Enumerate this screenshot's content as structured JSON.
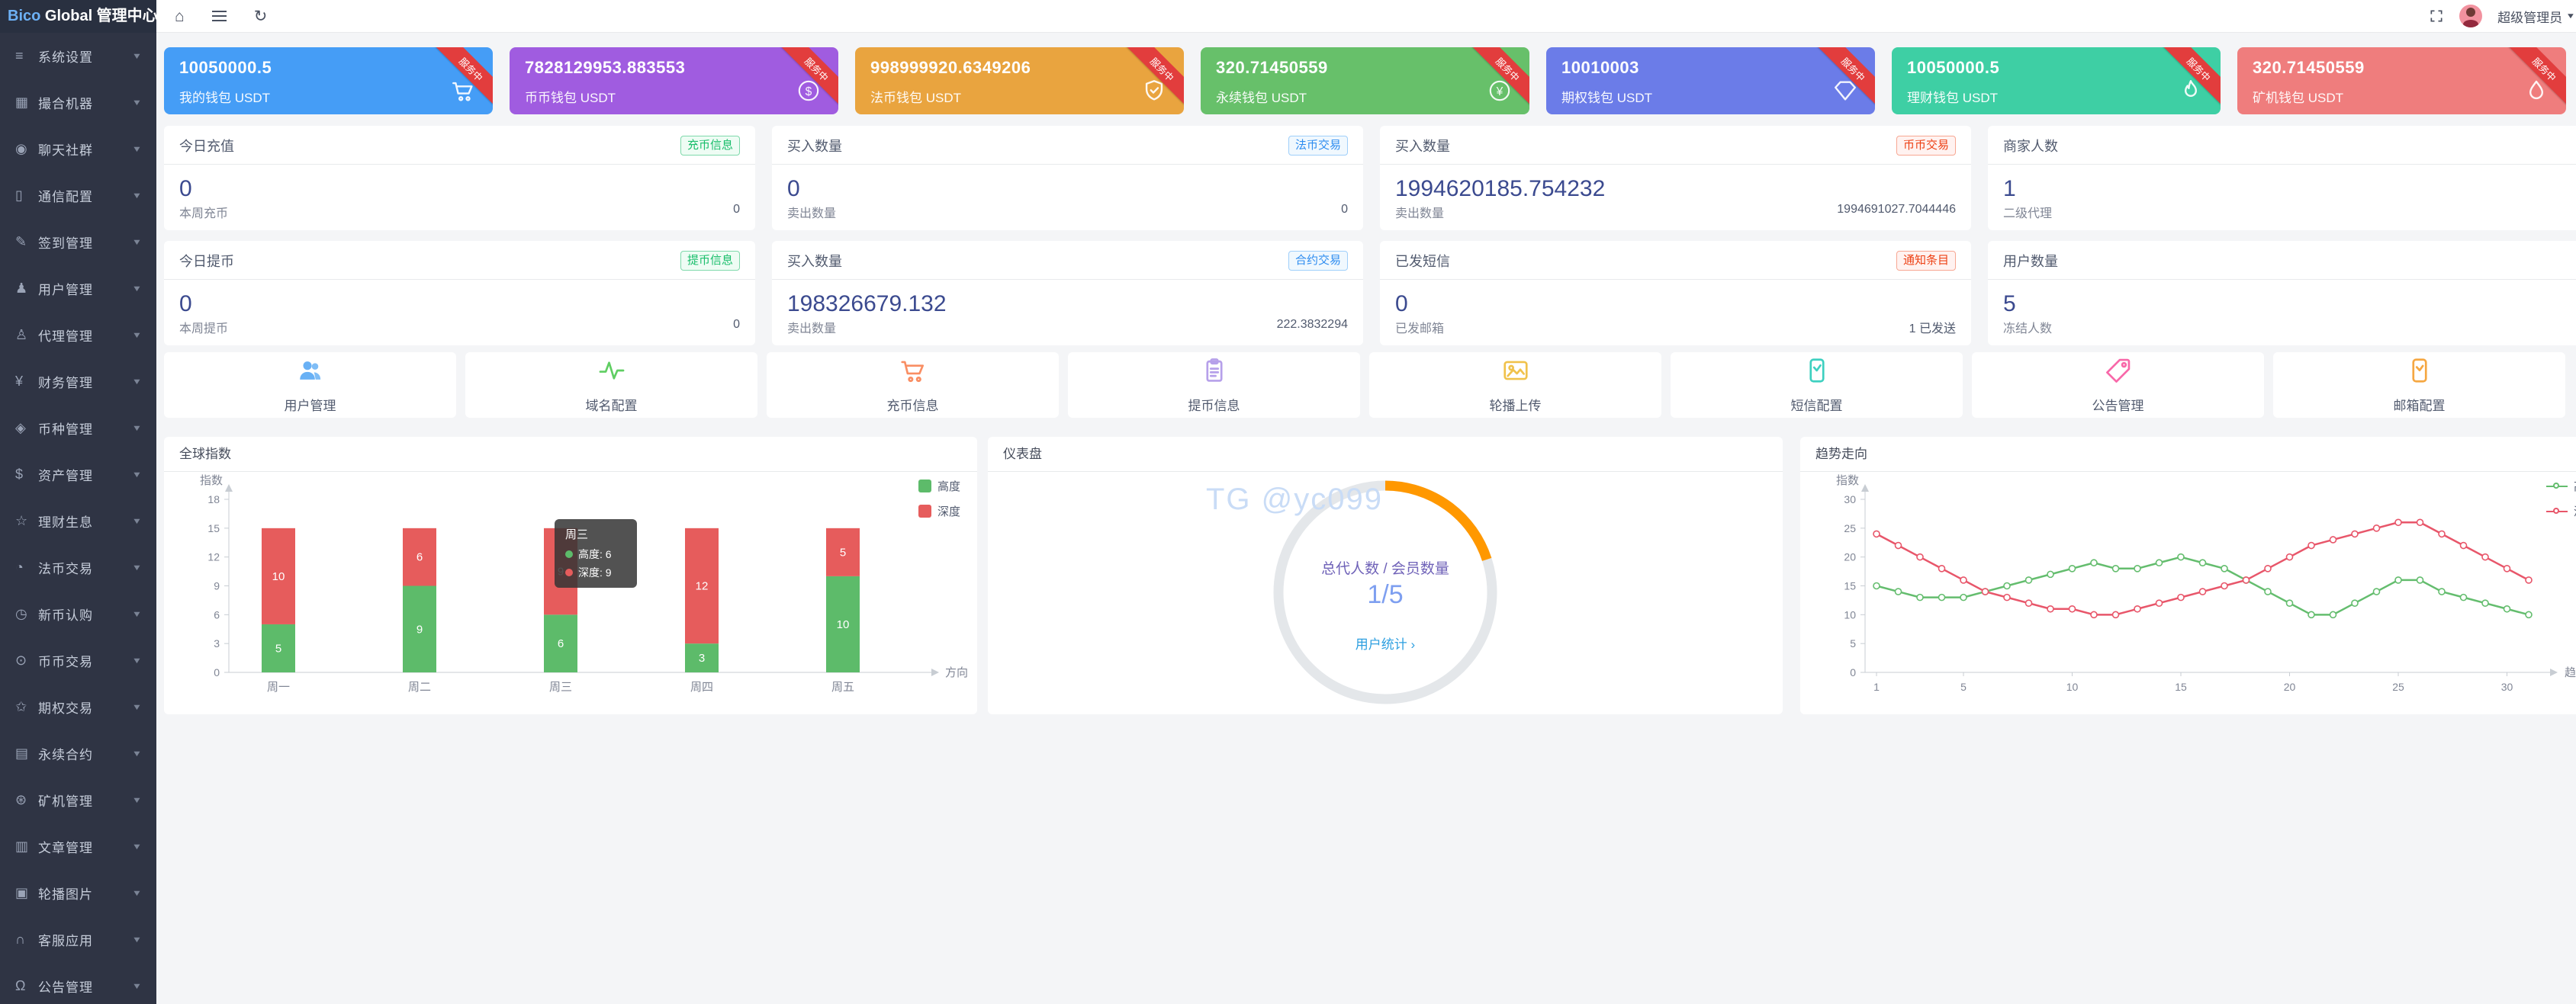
{
  "app": {
    "logo_primary": "Bico",
    "logo_secondary": " Global 管理中心",
    "admin_name": "超级管理员"
  },
  "topbar": {
    "icons": [
      {
        "name": "home-icon",
        "glyph": "⌂"
      },
      {
        "name": "menu-fold-icon",
        "glyph": ""
      },
      {
        "name": "refresh-icon",
        "glyph": "↻"
      }
    ]
  },
  "sidebar": {
    "items": [
      {
        "icon": "sliders-icon",
        "glyph": "≡",
        "label": "系统设置"
      },
      {
        "icon": "modules-icon",
        "glyph": "▦",
        "label": "撮合机器"
      },
      {
        "icon": "chat-icon",
        "glyph": "◉",
        "label": "聊天社群"
      },
      {
        "icon": "phone-icon",
        "glyph": "▯",
        "label": "通信配置"
      },
      {
        "icon": "signin-icon",
        "glyph": "✎",
        "label": "签到管理"
      },
      {
        "icon": "user-icon",
        "glyph": "♟",
        "label": "用户管理"
      },
      {
        "icon": "agent-icon",
        "glyph": "♙",
        "label": "代理管理"
      },
      {
        "icon": "finance-icon",
        "glyph": "¥",
        "label": "财务管理"
      },
      {
        "icon": "coin-type-icon",
        "glyph": "◈",
        "label": "币种管理"
      },
      {
        "icon": "asset-icon",
        "glyph": "$",
        "label": "资产管理"
      },
      {
        "icon": "wealth-icon",
        "glyph": "☆",
        "label": "理财生息"
      },
      {
        "icon": "fiat-trade-icon",
        "glyph": "◔",
        "label": "法币交易"
      },
      {
        "icon": "new-coin-icon",
        "glyph": "◷",
        "label": "新币认购"
      },
      {
        "icon": "coin-trade-icon",
        "glyph": "⊙",
        "label": "币币交易"
      },
      {
        "icon": "option-trade-icon",
        "glyph": "✩",
        "label": "期权交易"
      },
      {
        "icon": "contract-icon",
        "glyph": "▤",
        "label": "永续合约"
      },
      {
        "icon": "miner-icon",
        "glyph": "⊛",
        "label": "矿机管理"
      },
      {
        "icon": "article-icon",
        "glyph": "▥",
        "label": "文章管理"
      },
      {
        "icon": "carousel-icon",
        "glyph": "▣",
        "label": "轮播图片"
      },
      {
        "icon": "service-icon",
        "glyph": "∩",
        "label": "客服应用"
      },
      {
        "icon": "announce-icon",
        "glyph": "Ω",
        "label": "公告管理"
      }
    ]
  },
  "wallet_cards": [
    {
      "value": "10050000.5",
      "label": "我的钱包 USDT",
      "color": "#459df6",
      "icon": "cart-icon",
      "ribbon": "服务中"
    },
    {
      "value": "7828129953.883553",
      "label": "币币钱包 USDT",
      "color": "#a05ce0",
      "icon": "dollar-circle-icon",
      "ribbon": "服务中"
    },
    {
      "value": "998999920.6349206",
      "label": "法币钱包 USDT",
      "color": "#e9a43f",
      "icon": "shield-check-icon",
      "ribbon": "服务中"
    },
    {
      "value": "320.71450559",
      "label": "永续钱包 USDT",
      "color": "#67c06a",
      "icon": "yen-circle-icon",
      "ribbon": "服务中"
    },
    {
      "value": "10010003",
      "label": "期权钱包 USDT",
      "color": "#6b7ce8",
      "icon": "diamond-icon",
      "ribbon": "服务中"
    },
    {
      "value": "10050000.5",
      "label": "理财钱包 USDT",
      "color": "#3ecfa4",
      "icon": "flame-icon",
      "ribbon": "服务中"
    },
    {
      "value": "320.71450559",
      "label": "矿机钱包 USDT",
      "color": "#ef7d7d",
      "icon": "drop-icon",
      "ribbon": "服务中"
    }
  ],
  "stat_cards": [
    {
      "label": "今日充值",
      "badge": {
        "text": "充币信息",
        "type": "green"
      },
      "value": "0",
      "footer_label": "本周充币",
      "footer_value": "0"
    },
    {
      "label": "买入数量",
      "badge": {
        "text": "法币交易",
        "type": "blue"
      },
      "value": "0",
      "footer_label": "卖出数量",
      "footer_value": "0"
    },
    {
      "label": "买入数量",
      "badge": {
        "text": "币币交易",
        "type": "red"
      },
      "value": "1994620185.754232",
      "footer_label": "卖出数量",
      "footer_value": "1994691027.7044446"
    },
    {
      "label": "商家人数",
      "badge": null,
      "value": "1",
      "footer_label": "二级代理",
      "footer_value": ""
    },
    {
      "label": "今日提币",
      "badge": {
        "text": "提币信息",
        "type": "green"
      },
      "value": "0",
      "footer_label": "本周提币",
      "footer_value": "0"
    },
    {
      "label": "买入数量",
      "badge": {
        "text": "合约交易",
        "type": "blue"
      },
      "value": "198326679.132",
      "footer_label": "卖出数量",
      "footer_value": "222.3832294"
    },
    {
      "label": "已发短信",
      "badge": {
        "text": "通知条目",
        "type": "red"
      },
      "value": "0",
      "footer_label": "已发邮箱",
      "footer_value": "1 已发送"
    },
    {
      "label": "用户数量",
      "badge": null,
      "value": "5",
      "footer_label": "冻结人数",
      "footer_value": ""
    }
  ],
  "shortcuts": [
    {
      "icon": "users-icon",
      "label": "用户管理",
      "color": "#69b1f5"
    },
    {
      "icon": "pulse-icon",
      "label": "域名配置",
      "color": "#5fce62"
    },
    {
      "icon": "cart-outline-icon",
      "label": "充币信息",
      "color": "#f98e63"
    },
    {
      "icon": "clipboard-icon",
      "label": "提币信息",
      "color": "#b6a0ea"
    },
    {
      "icon": "image-icon",
      "label": "轮播上传",
      "color": "#f0c24b"
    },
    {
      "icon": "sms-icon",
      "label": "短信配置",
      "color": "#3ed0c0"
    },
    {
      "icon": "tag-icon",
      "label": "公告管理",
      "color": "#f868a9"
    },
    {
      "icon": "mail-icon",
      "label": "邮箱配置",
      "color": "#f5a742"
    }
  ],
  "chart_data": [
    {
      "type": "bar",
      "title": "全球指数",
      "categories": [
        "周一",
        "周二",
        "周三",
        "周四",
        "周五"
      ],
      "series": [
        {
          "name": "高度",
          "color": "#5dbb6a",
          "values": [
            5,
            9,
            6,
            3,
            10
          ]
        },
        {
          "name": "深度",
          "color": "#e65c5c",
          "values": [
            10,
            6,
            9,
            12,
            5
          ]
        }
      ],
      "stacked": true,
      "xlabel": "方向",
      "ylabel": "指数",
      "ylim": [
        0,
        18
      ],
      "ytick_step": 3,
      "grid": false,
      "legend_position": "top-right",
      "tooltip": {
        "category": "周三",
        "rows": [
          {
            "name": "高度",
            "value": 6
          },
          {
            "name": "深度",
            "value": 9
          }
        ]
      }
    },
    {
      "type": "gauge",
      "title": "仪表盘",
      "label": "总代人数 / 会员数量",
      "value_text": "1/5",
      "ratio": 0.2,
      "link_text": "用户统计 ›",
      "watermark": "TG @yc099",
      "arc_color": "#ff9800",
      "ring_color": "#e4e7ea"
    },
    {
      "type": "line",
      "title": "趋势走向",
      "x": [
        1,
        2,
        3,
        4,
        5,
        6,
        7,
        8,
        9,
        10,
        11,
        12,
        13,
        14,
        15,
        16,
        17,
        18,
        19,
        20,
        21,
        22,
        23,
        24,
        25,
        26,
        27,
        28,
        29,
        30,
        31
      ],
      "xticks": [
        1,
        5,
        10,
        15,
        20,
        25,
        30
      ],
      "series": [
        {
          "name": "高度",
          "color": "#64bd6e",
          "values": [
            15,
            14,
            13,
            13,
            13,
            14,
            15,
            16,
            17,
            18,
            19,
            18,
            18,
            19,
            20,
            19,
            18,
            16,
            14,
            12,
            10,
            10,
            12,
            14,
            16,
            16,
            14,
            13,
            12,
            11,
            10
          ]
        },
        {
          "name": "深度",
          "color": "#e8566a",
          "values": [
            24,
            22,
            20,
            18,
            16,
            14,
            13,
            12,
            11,
            11,
            10,
            10,
            11,
            12,
            13,
            14,
            15,
            16,
            18,
            20,
            22,
            23,
            24,
            25,
            26,
            26,
            24,
            22,
            20,
            18,
            16
          ]
        }
      ],
      "xlabel": "趋势",
      "ylabel": "指数",
      "ylim": [
        0,
        30
      ],
      "ytick_step": 5,
      "grid": false,
      "legend_position": "top-right"
    }
  ]
}
